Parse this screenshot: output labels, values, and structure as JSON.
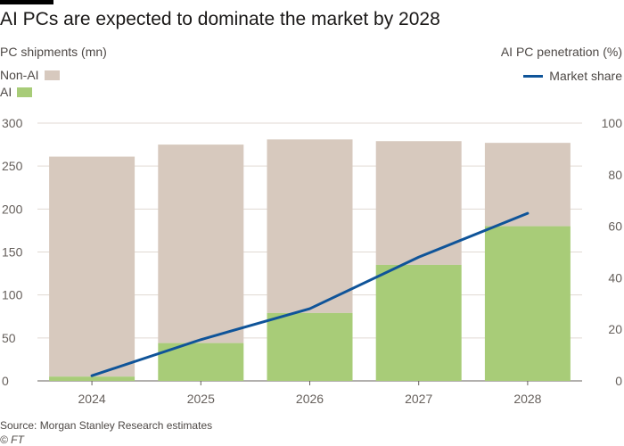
{
  "header": {
    "title": "AI PCs are expected to dominate the market by 2028"
  },
  "colors": {
    "non_ai": "#d7c9be",
    "ai": "#a8cc78",
    "line": "#0f5499",
    "grid": "#e0d9d3",
    "axis": "#66605c"
  },
  "legend": {
    "non_ai": "Non-AI",
    "ai": "AI",
    "line": "Market share"
  },
  "footer": {
    "source": "Source: Morgan Stanley Research estimates",
    "credit": "© FT"
  },
  "chart_data": {
    "type": "bar",
    "subtype": "stacked bar with line overlay (secondary axis)",
    "title": "AI PCs are expected to dominate the market by 2028",
    "ylabel": "PC shipments (mn)",
    "y2label": "AI PC penetration (%)",
    "categories": [
      "2024",
      "2025",
      "2026",
      "2027",
      "2028"
    ],
    "ylim": [
      0,
      300
    ],
    "yticks": [
      0,
      50,
      100,
      150,
      200,
      250,
      300
    ],
    "y2lim": [
      0,
      100
    ],
    "y2ticks": [
      0,
      20,
      40,
      60,
      80,
      100
    ],
    "series": [
      {
        "name": "AI",
        "kind": "bar",
        "axis": "left",
        "values": [
          5,
          44,
          79,
          135,
          180
        ]
      },
      {
        "name": "Non-AI",
        "kind": "bar",
        "axis": "left",
        "values": [
          256,
          231,
          202,
          144,
          97
        ]
      },
      {
        "name": "Market share",
        "kind": "line",
        "axis": "right",
        "values": [
          2,
          16,
          28,
          48,
          65
        ]
      }
    ],
    "legend_position": "top"
  }
}
